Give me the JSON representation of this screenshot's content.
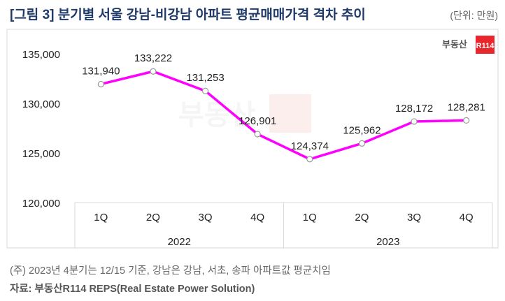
{
  "header": {
    "title": "[그림 3] 분기별 서울 강남-비강남 아파트 평균매매가격 격차 추이",
    "unit": "(단위: 만원)"
  },
  "logo": {
    "text": "부동산",
    "badge": "R114"
  },
  "colors": {
    "line": "#ff00ff",
    "title": "#1f3a68",
    "badge": "#e8262b"
  },
  "chart_data": {
    "type": "line",
    "title": "분기별 서울 강남-비강남 아파트 평균매매가격 격차 추이",
    "ylabel": "만원",
    "ylim": [
      120000,
      135000
    ],
    "yticks": [
      "135,000",
      "130,000",
      "125,000",
      "120,000"
    ],
    "ytick_values": [
      135000,
      130000,
      125000,
      120000
    ],
    "categories": [
      "1Q",
      "2Q",
      "3Q",
      "4Q",
      "1Q",
      "2Q",
      "3Q",
      "4Q"
    ],
    "groups": [
      "2022",
      "2023"
    ],
    "values": [
      131940,
      133222,
      131253,
      126901,
      124374,
      125962,
      128172,
      128281
    ],
    "labels": [
      "131,940",
      "133,222",
      "131,253",
      "126,901",
      "124,374",
      "125,962",
      "128,172",
      "128,281"
    ],
    "grid": false
  },
  "footer": {
    "note": "(주) 2023년 4분기는 12/15 기준, 강남은 강남, 서초, 송파 아파트값 평균치임",
    "source": "자료: 부동산R114 REPS(Real Estate Power Solution)"
  }
}
